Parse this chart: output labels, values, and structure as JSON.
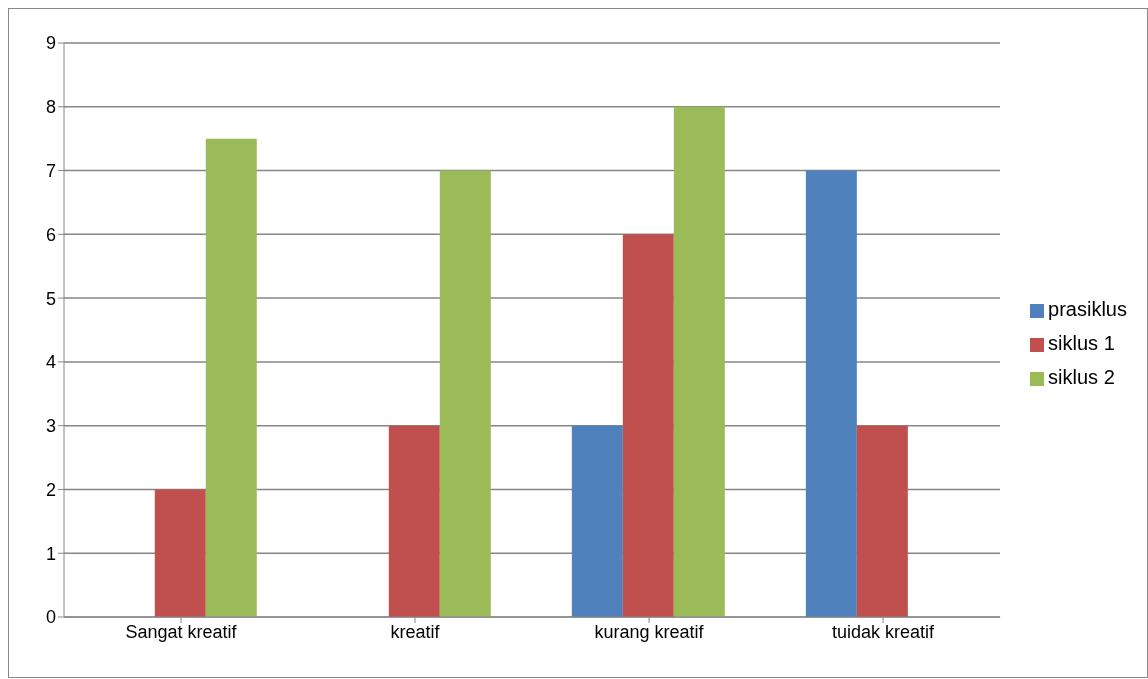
{
  "chart_data": {
    "type": "bar",
    "categories": [
      "Sangat kreatif",
      "kreatif",
      "kurang kreatif",
      "tuidak kreatif"
    ],
    "series": [
      {
        "name": "prasiklus",
        "color": "#4f81bd",
        "values": [
          0,
          0,
          3,
          7
        ]
      },
      {
        "name": "siklus 1",
        "color": "#c0504d",
        "values": [
          2,
          3,
          6,
          3
        ]
      },
      {
        "name": "siklus 2",
        "color": "#9bbb59",
        "values": [
          7.5,
          7,
          8,
          0
        ]
      }
    ],
    "ylim": [
      0,
      9
    ],
    "yticks": [
      0,
      1,
      2,
      3,
      4,
      5,
      6,
      7,
      8,
      9
    ],
    "grid": "y",
    "legend": "right"
  }
}
